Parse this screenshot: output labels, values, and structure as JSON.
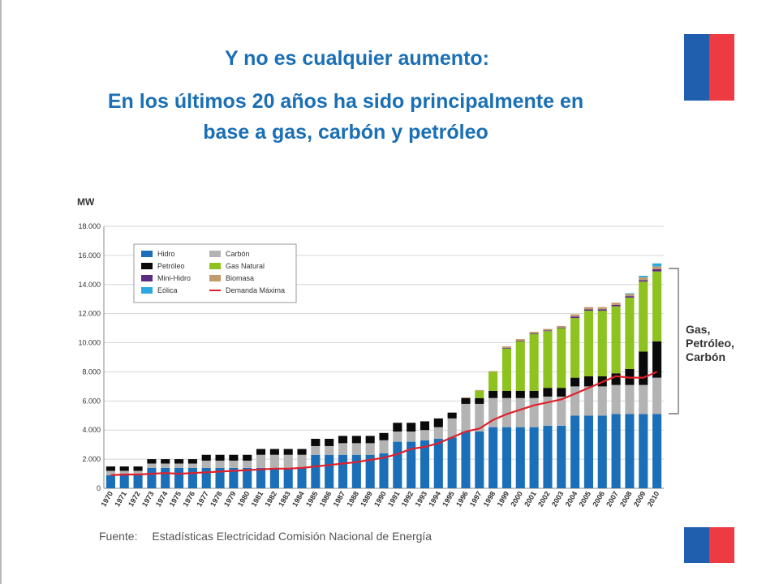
{
  "title_line1": "Y no es cualquier aumento:",
  "title_line2a": "En los últimos 20 años ha sido principalmente en",
  "title_line2b": "base a gas, carbón y petróleo",
  "unit_label": "MW",
  "bracket_label": [
    "Gas,",
    "Petróleo,",
    "Carbón"
  ],
  "source_label": "Fuente:",
  "source_text": "Estadísticas Electricidad Comisión Nacional de Energía",
  "colors": {
    "title": "#1a6fb5",
    "flag_blue": "#1f5fae",
    "flag_red": "#ee3a43",
    "hidro": "#1b6fb8",
    "carbon": "#b3b3b3",
    "petroleo": "#0a0a0a",
    "gas": "#8dc21f",
    "minihidro": "#5a2d82",
    "biomasa": "#c29a6b",
    "eolica": "#2aa9e0",
    "demanda": "#e0202a"
  },
  "chart_data": {
    "type": "bar",
    "stacked": true,
    "ylabel": "MW",
    "ylim": [
      0,
      18000
    ],
    "yticks": [
      "0",
      "2.000",
      "4.000",
      "6.000",
      "8.000",
      "10.000",
      "12.000",
      "14.000",
      "16.000",
      "18.000"
    ],
    "grid": true,
    "legend_position": "top-left",
    "categories": [
      "1970",
      "1971",
      "1972",
      "1973",
      "1974",
      "1975",
      "1976",
      "1977",
      "1978",
      "1979",
      "1980",
      "1981",
      "1982",
      "1983",
      "1984",
      "1985",
      "1986",
      "1987",
      "1988",
      "1989",
      "1990",
      "1991",
      "1992",
      "1993",
      "1994",
      "1995",
      "1996",
      "1997",
      "1998",
      "1999",
      "2000",
      "2001",
      "2002",
      "2003",
      "2004",
      "2005",
      "2006",
      "2007",
      "2008",
      "2009",
      "2010"
    ],
    "series": [
      {
        "name": "Hidro",
        "key": "hidro",
        "values": [
          900,
          900,
          900,
          1400,
          1400,
          1400,
          1400,
          1400,
          1400,
          1400,
          1400,
          1400,
          1400,
          1400,
          1400,
          2300,
          2300,
          2300,
          2300,
          2300,
          2400,
          3200,
          3200,
          3300,
          3400,
          3500,
          3900,
          3900,
          4200,
          4200,
          4200,
          4200,
          4300,
          4300,
          5000,
          5000,
          5000,
          5100,
          5100,
          5100,
          5100
        ]
      },
      {
        "name": "Carbón",
        "key": "carbon",
        "values": [
          300,
          300,
          300,
          300,
          300,
          300,
          300,
          500,
          500,
          500,
          500,
          900,
          900,
          900,
          900,
          600,
          600,
          800,
          800,
          800,
          900,
          700,
          700,
          700,
          800,
          1300,
          1900,
          1900,
          2000,
          2000,
          2000,
          2000,
          2000,
          2000,
          2000,
          2000,
          2000,
          2000,
          2000,
          2000,
          2500
        ]
      },
      {
        "name": "Petróleo",
        "key": "petroleo",
        "values": [
          300,
          300,
          300,
          300,
          300,
          300,
          300,
          400,
          400,
          400,
          400,
          400,
          400,
          400,
          400,
          500,
          500,
          500,
          500,
          500,
          500,
          600,
          600,
          600,
          600,
          400,
          400,
          400,
          500,
          500,
          500,
          500,
          600,
          600,
          600,
          700,
          700,
          800,
          1100,
          2300,
          2500
        ]
      },
      {
        "name": "Gas Natural",
        "key": "gas",
        "values": [
          0,
          0,
          0,
          0,
          0,
          0,
          0,
          0,
          0,
          0,
          0,
          0,
          0,
          0,
          0,
          0,
          0,
          0,
          0,
          0,
          0,
          0,
          0,
          0,
          0,
          0,
          0,
          500,
          1300,
          2900,
          3400,
          3900,
          3900,
          4100,
          4100,
          4500,
          4500,
          4600,
          4900,
          4800,
          4800
        ]
      },
      {
        "name": "Mini-Hidro",
        "key": "minihidro",
        "values": [
          0,
          0,
          0,
          0,
          0,
          0,
          0,
          0,
          0,
          0,
          0,
          0,
          0,
          0,
          0,
          0,
          0,
          0,
          0,
          0,
          0,
          0,
          0,
          0,
          0,
          0,
          0,
          0,
          0,
          50,
          50,
          50,
          50,
          50,
          100,
          100,
          100,
          100,
          100,
          100,
          150
        ]
      },
      {
        "name": "Biomasa",
        "key": "biomasa",
        "values": [
          0,
          0,
          0,
          0,
          0,
          0,
          0,
          0,
          0,
          0,
          0,
          0,
          0,
          0,
          0,
          0,
          0,
          0,
          0,
          0,
          0,
          0,
          0,
          0,
          0,
          0,
          50,
          50,
          50,
          100,
          100,
          100,
          100,
          100,
          150,
          150,
          150,
          150,
          150,
          200,
          200
        ]
      },
      {
        "name": "Eólica",
        "key": "eolica",
        "values": [
          0,
          0,
          0,
          0,
          0,
          0,
          0,
          0,
          0,
          0,
          0,
          0,
          0,
          0,
          0,
          0,
          0,
          0,
          0,
          0,
          0,
          0,
          0,
          0,
          0,
          0,
          0,
          0,
          0,
          0,
          0,
          0,
          0,
          0,
          0,
          0,
          0,
          0,
          50,
          100,
          200
        ]
      }
    ],
    "line_series": {
      "name": "Demanda Máxima",
      "key": "demanda",
      "values": [
        900,
        950,
        950,
        1000,
        1050,
        1000,
        1050,
        1100,
        1150,
        1200,
        1250,
        1300,
        1350,
        1350,
        1400,
        1500,
        1600,
        1700,
        1800,
        1950,
        2100,
        2350,
        2700,
        2850,
        3100,
        3500,
        3900,
        4100,
        4700,
        5100,
        5400,
        5700,
        5900,
        6100,
        6500,
        6900,
        7300,
        7700,
        7600,
        7600,
        8000
      ]
    }
  }
}
